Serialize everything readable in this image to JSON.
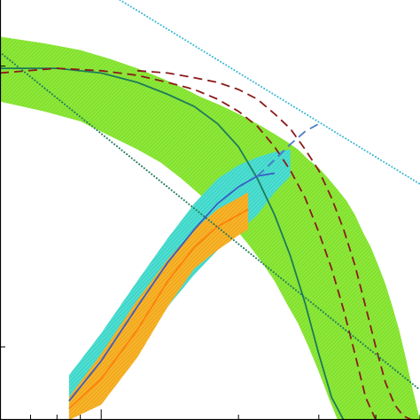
{
  "chart_data": {
    "type": "area",
    "title": "",
    "xlabel": "",
    "ylabel": "",
    "xscale": "log",
    "yscale": "log",
    "xlim": [
      0.6,
      5.0
    ],
    "ylim": [
      1.8,
      3.3
    ],
    "grid": false,
    "legend": "none",
    "tick_labels_visible": false,
    "series": [
      {
        "kind": "band",
        "color": "#7be02a",
        "x": [
          0.6,
          0.75,
          0.9,
          1.05,
          1.2,
          1.35,
          1.5,
          1.65,
          1.8,
          1.95,
          2.1,
          2.25,
          2.4,
          2.55,
          2.7,
          2.85,
          3.0,
          3.15,
          3.3,
          3.45,
          3.6,
          3.75,
          3.9,
          4.05,
          4.2,
          4.35,
          4.5,
          4.65,
          4.8,
          5.0
        ],
        "upper": [
          3.13,
          3.1,
          3.07,
          3.03,
          2.99,
          2.95,
          2.91,
          2.87,
          2.84,
          2.81,
          2.78,
          2.75,
          2.72,
          2.69,
          2.66,
          2.62,
          2.59,
          2.55,
          2.51,
          2.47,
          2.42,
          2.36,
          2.31,
          2.25,
          2.19,
          2.12,
          2.05,
          1.97,
          1.89,
          1.8
        ],
        "lower": [
          2.85,
          2.81,
          2.77,
          2.71,
          2.66,
          2.61,
          2.55,
          2.49,
          2.43,
          2.38,
          2.32,
          2.26,
          2.2,
          2.13,
          2.07,
          2.0,
          1.93,
          1.86,
          1.8,
          1.8,
          1.8,
          1.8,
          1.8,
          1.8,
          1.8,
          1.8,
          1.8,
          1.8,
          1.8,
          1.8
        ]
      },
      {
        "kind": "band",
        "color": "#3ad4c8",
        "x": [
          0.85,
          1.0,
          1.2,
          1.4,
          1.6,
          1.8,
          2.0,
          2.2,
          2.4,
          2.6
        ],
        "upper": [
          1.92,
          2.04,
          2.2,
          2.34,
          2.46,
          2.55,
          2.6,
          2.63,
          2.65,
          2.66
        ],
        "lower": [
          1.8,
          1.86,
          1.98,
          2.12,
          2.22,
          2.3,
          2.36,
          2.42,
          2.5,
          2.56
        ]
      },
      {
        "kind": "band",
        "color": "#f5a51a",
        "x": [
          0.85,
          1.0,
          1.2,
          1.4,
          1.6,
          1.8,
          2.0,
          2.1
        ],
        "upper": [
          1.86,
          1.98,
          2.14,
          2.27,
          2.37,
          2.44,
          2.48,
          2.5
        ],
        "lower": [
          1.8,
          1.84,
          1.97,
          2.12,
          2.24,
          2.3,
          2.35,
          2.37
        ]
      },
      {
        "kind": "line",
        "style": "solid",
        "color": "#1e7a5c",
        "x": [
          0.6,
          0.8,
          1.0,
          1.2,
          1.4,
          1.6,
          1.8,
          2.0,
          2.2,
          2.4,
          2.6,
          2.8,
          3.0,
          3.2,
          3.4
        ],
        "y": [
          2.99,
          2.99,
          2.97,
          2.93,
          2.88,
          2.83,
          2.76,
          2.67,
          2.55,
          2.42,
          2.28,
          2.13,
          1.98,
          1.86,
          1.8
        ]
      },
      {
        "kind": "line",
        "style": "dashed",
        "color": "#8b1a1a",
        "x": [
          0.6,
          0.8,
          1.0,
          1.2,
          1.4,
          1.6,
          1.8,
          2.0,
          2.2,
          2.4,
          2.6,
          2.8,
          3.0,
          3.2,
          3.4,
          3.6,
          3.8,
          4.0
        ],
        "y": [
          2.97,
          2.99,
          2.98,
          2.96,
          2.93,
          2.9,
          2.86,
          2.81,
          2.75,
          2.67,
          2.58,
          2.48,
          2.36,
          2.24,
          2.11,
          1.98,
          1.86,
          1.8
        ]
      },
      {
        "kind": "line",
        "style": "dashed",
        "color": "#8b1a1a",
        "x": [
          1.2,
          1.4,
          1.6,
          1.8,
          2.0,
          2.2,
          2.4,
          2.6,
          2.8,
          3.0,
          3.2,
          3.4,
          3.6,
          3.8,
          4.0,
          4.2,
          4.4,
          4.6,
          4.8,
          5.0
        ],
        "y": [
          2.98,
          2.97,
          2.95,
          2.93,
          2.9,
          2.86,
          2.8,
          2.74,
          2.66,
          2.58,
          2.48,
          2.37,
          2.25,
          2.12,
          2.0,
          1.9,
          1.84,
          1.81,
          1.8,
          1.8
        ]
      },
      {
        "kind": "line",
        "style": "solid",
        "color": "#3a5bc7",
        "x": [
          0.85,
          1.0,
          1.2,
          1.4,
          1.6,
          1.8,
          2.0,
          2.2,
          2.4
        ],
        "y": [
          1.85,
          1.96,
          2.12,
          2.26,
          2.37,
          2.46,
          2.52,
          2.56,
          2.57
        ]
      },
      {
        "kind": "line",
        "style": "dashed",
        "color": "#4a7bc7",
        "x": [
          2.2,
          2.4,
          2.6,
          2.8,
          3.0
        ],
        "y": [
          2.56,
          2.62,
          2.68,
          2.73,
          2.76
        ]
      },
      {
        "kind": "line",
        "style": "solid",
        "color": "#ff7f0e",
        "x": [
          0.85,
          1.0,
          1.2,
          1.4,
          1.6,
          1.8,
          2.0,
          2.1
        ],
        "y": [
          1.83,
          1.91,
          2.05,
          2.2,
          2.31,
          2.38,
          2.42,
          2.44
        ]
      },
      {
        "kind": "line",
        "style": "dotted",
        "color": "#1e7a5c",
        "x": [
          0.6,
          5.0
        ],
        "y": [
          3.06,
          1.88
        ]
      },
      {
        "kind": "line",
        "style": "dotted",
        "color": "#3ab8d4",
        "x": [
          1.1,
          5.0
        ],
        "y": [
          3.3,
          2.53
        ]
      }
    ]
  }
}
